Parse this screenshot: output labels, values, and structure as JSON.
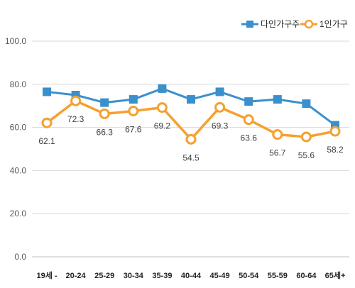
{
  "chart_data": {
    "type": "line",
    "categories": [
      "19세 -",
      "20-24",
      "25-29",
      "30-34",
      "35-39",
      "40-44",
      "45-49",
      "50-54",
      "55-59",
      "60-64",
      "65세+"
    ],
    "ylim": [
      0,
      100
    ],
    "yticks": [
      "0.0",
      "20.0",
      "40.0",
      "60.0",
      "80.0",
      "100.0"
    ],
    "grid": true,
    "legend_position": "top-right",
    "series": [
      {
        "name": "다인가구주",
        "color": "#3a8fcd",
        "marker": "square",
        "values": [
          76.5,
          75.0,
          71.5,
          73.0,
          78.0,
          73.0,
          76.5,
          72.0,
          73.0,
          71.0,
          61.0
        ],
        "labels": []
      },
      {
        "name": "1인가구",
        "color": "#f5a030",
        "marker": "circle",
        "values": [
          62.1,
          72.3,
          66.3,
          67.6,
          69.2,
          54.5,
          69.3,
          63.6,
          56.7,
          55.6,
          58.2
        ],
        "labels": [
          "62.1",
          "72.3",
          "66.3",
          "67.6",
          "69.2",
          "54.5",
          "69.3",
          "63.6",
          "56.7",
          "55.6",
          "58.2"
        ]
      }
    ]
  }
}
